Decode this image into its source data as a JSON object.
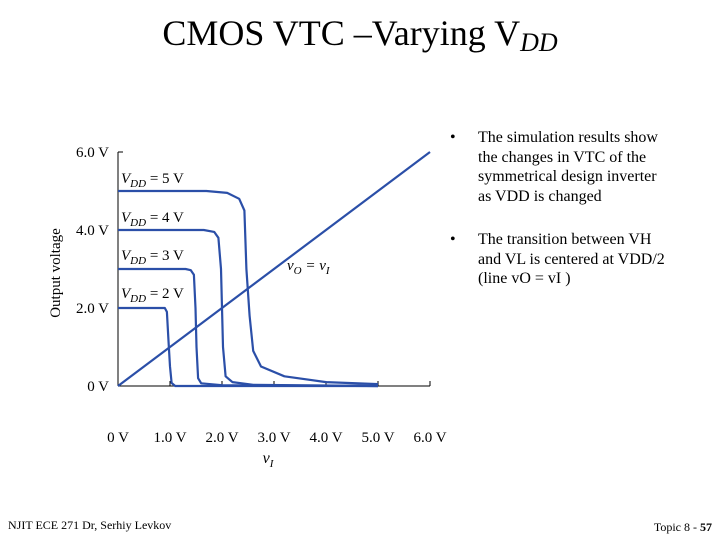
{
  "title": {
    "text": "CMOS VTC –Varying V",
    "symbol_sub": "DD"
  },
  "bullets": [
    {
      "marker": "•",
      "lines": [
        "The simulation results show",
        "the changes in VTC of the",
        "symmetrical design inverter",
        "as VDD is changed"
      ]
    },
    {
      "marker": "•",
      "lines": [
        "The transition between VH",
        "and VL is centered at VDD/2",
        "(line vO = vI )"
      ]
    }
  ],
  "footer": {
    "left": "NJIT ECE 271 Dr, Serhiy Levkov",
    "right_prefix": "Topic 8 - ",
    "right_page": "57"
  },
  "chart_data": {
    "type": "line",
    "xlabel": "vI",
    "ylabel": "Output voltage",
    "xlim": [
      0,
      6
    ],
    "ylim": [
      0,
      6
    ],
    "x_ticks": [
      "0 V",
      "1.0 V",
      "2.0 V",
      "3.0 V",
      "4.0 V",
      "5.0 V",
      "6.0 V"
    ],
    "y_ticks": [
      "0 V",
      "2.0 V",
      "4.0 V",
      "6.0 V"
    ],
    "grid": false,
    "line_color": "#2b4fa8",
    "series": [
      {
        "name": "VDD = 2 V",
        "points": [
          [
            0,
            2.0
          ],
          [
            0.9,
            2.0
          ],
          [
            0.94,
            1.9
          ],
          [
            0.97,
            1.2
          ],
          [
            1.0,
            0.5
          ],
          [
            1.03,
            0.08
          ],
          [
            1.1,
            0
          ],
          [
            5.0,
            0
          ]
        ]
      },
      {
        "name": "VDD = 3 V",
        "points": [
          [
            0,
            3.0
          ],
          [
            1.3,
            3.0
          ],
          [
            1.4,
            2.97
          ],
          [
            1.46,
            2.85
          ],
          [
            1.49,
            2.0
          ],
          [
            1.51,
            1.0
          ],
          [
            1.54,
            0.2
          ],
          [
            1.6,
            0.07
          ],
          [
            2.0,
            0.02
          ],
          [
            5.0,
            0
          ]
        ]
      },
      {
        "name": "VDD = 4 V",
        "points": [
          [
            0,
            4.0
          ],
          [
            1.65,
            4.0
          ],
          [
            1.85,
            3.95
          ],
          [
            1.93,
            3.8
          ],
          [
            1.98,
            3.0
          ],
          [
            2.02,
            1.0
          ],
          [
            2.07,
            0.25
          ],
          [
            2.2,
            0.1
          ],
          [
            2.6,
            0.03
          ],
          [
            5.0,
            0
          ]
        ]
      },
      {
        "name": "VDD = 5 V",
        "points": [
          [
            0,
            5.0
          ],
          [
            1.7,
            5.0
          ],
          [
            2.1,
            4.95
          ],
          [
            2.33,
            4.8
          ],
          [
            2.43,
            4.5
          ],
          [
            2.47,
            3.0
          ],
          [
            2.53,
            1.8
          ],
          [
            2.6,
            0.9
          ],
          [
            2.75,
            0.5
          ],
          [
            3.2,
            0.25
          ],
          [
            4.0,
            0.1
          ],
          [
            5.0,
            0.05
          ]
        ]
      },
      {
        "name": "vO = vI",
        "points": [
          [
            0,
            0
          ],
          [
            6,
            6
          ]
        ]
      }
    ]
  }
}
